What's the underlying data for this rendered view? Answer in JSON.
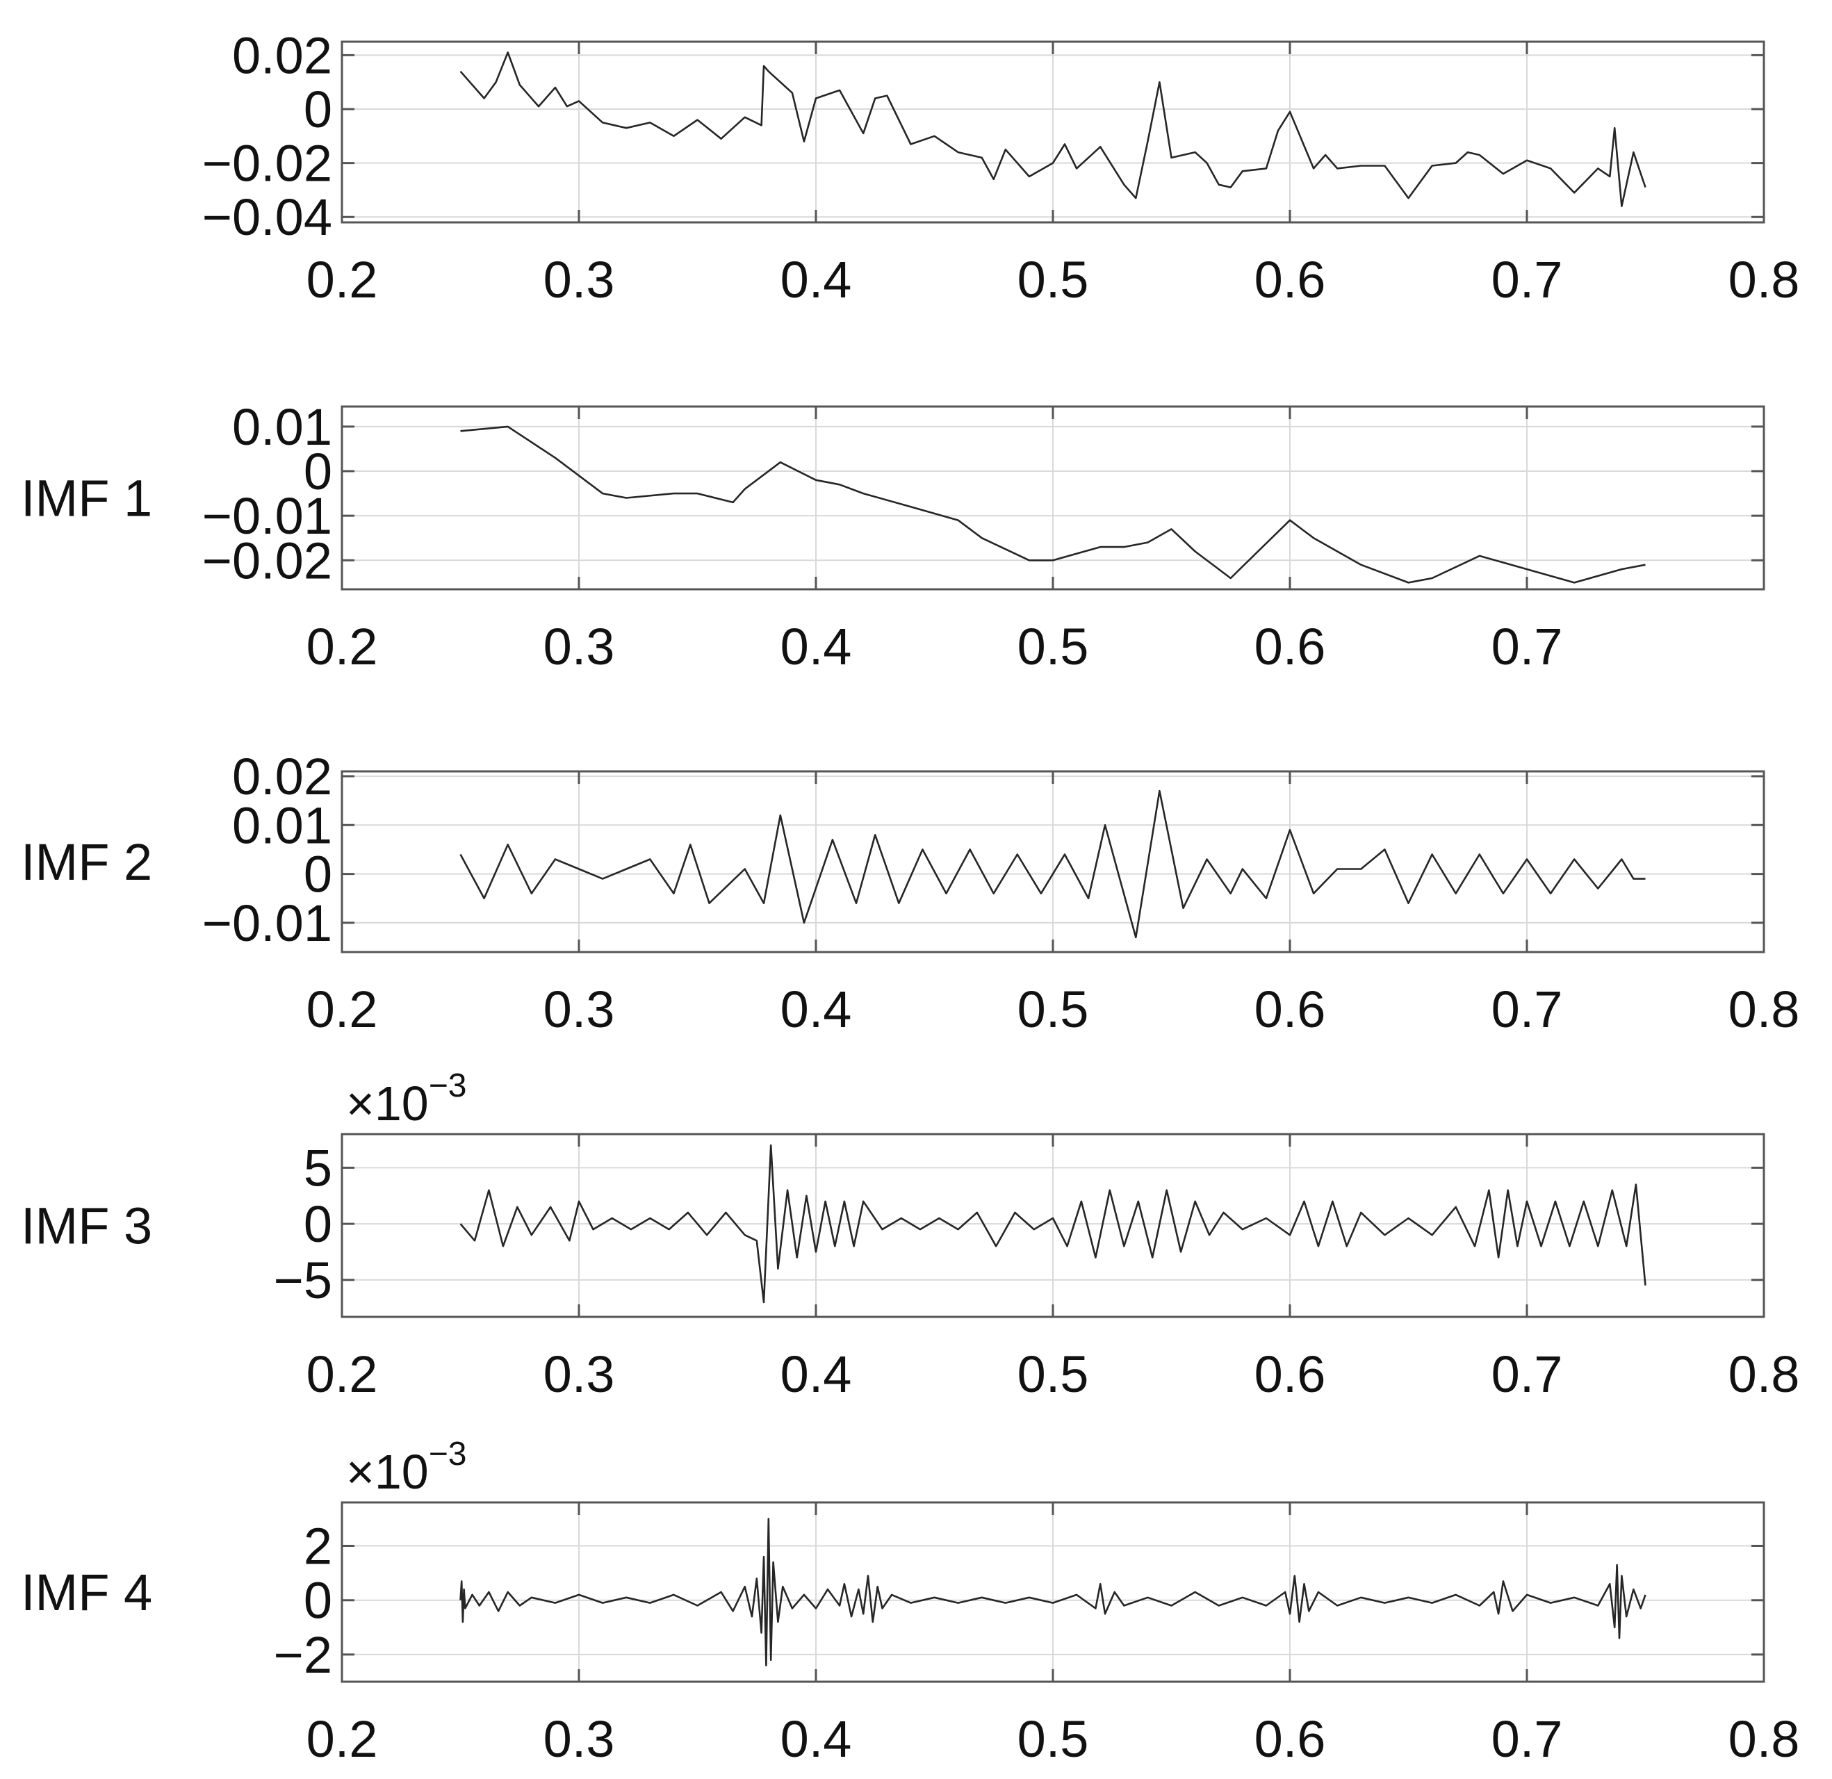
{
  "chart_data": [
    {
      "type": "line",
      "ylabel": "",
      "exponent": "",
      "xlim": [
        0.2,
        0.8
      ],
      "ylim": [
        -0.042,
        0.025
      ],
      "xticks": [
        "0.2",
        "0.3",
        "0.4",
        "0.5",
        "0.6",
        "0.7",
        "0.8"
      ],
      "yticks": [
        {
          "value": 0.02,
          "label": "0.02"
        },
        {
          "value": 0,
          "label": "0"
        },
        {
          "value": -0.02,
          "label": "−0.02"
        },
        {
          "value": -0.04,
          "label": "−0.04"
        }
      ],
      "grid": true,
      "series": [
        {
          "x": [
            0.25,
            0.26,
            0.265,
            0.27,
            0.275,
            0.283,
            0.29,
            0.295,
            0.3,
            0.31,
            0.32,
            0.33,
            0.34,
            0.35,
            0.36,
            0.37,
            0.377,
            0.378,
            0.38,
            0.39,
            0.395,
            0.4,
            0.41,
            0.42,
            0.425,
            0.43,
            0.44,
            0.45,
            0.46,
            0.47,
            0.475,
            0.48,
            0.49,
            0.5,
            0.505,
            0.51,
            0.52,
            0.53,
            0.535,
            0.54,
            0.545,
            0.55,
            0.56,
            0.565,
            0.57,
            0.575,
            0.58,
            0.59,
            0.595,
            0.6,
            0.61,
            0.615,
            0.62,
            0.63,
            0.64,
            0.65,
            0.66,
            0.67,
            0.675,
            0.68,
            0.69,
            0.7,
            0.71,
            0.72,
            0.73,
            0.735,
            0.737,
            0.74,
            0.745,
            0.75
          ],
          "y": [
            0.014,
            0.004,
            0.01,
            0.021,
            0.009,
            0.001,
            0.008,
            0.001,
            0.003,
            -0.005,
            -0.007,
            -0.005,
            -0.01,
            -0.004,
            -0.011,
            -0.003,
            -0.006,
            0.016,
            0.014,
            0.006,
            -0.012,
            0.004,
            0.007,
            -0.009,
            0.004,
            0.005,
            -0.013,
            -0.01,
            -0.016,
            -0.018,
            -0.026,
            -0.015,
            -0.025,
            -0.02,
            -0.013,
            -0.022,
            -0.014,
            -0.028,
            -0.033,
            -0.012,
            0.01,
            -0.018,
            -0.016,
            -0.02,
            -0.028,
            -0.029,
            -0.023,
            -0.022,
            -0.008,
            -0.001,
            -0.022,
            -0.017,
            -0.022,
            -0.021,
            -0.021,
            -0.033,
            -0.021,
            -0.02,
            -0.016,
            -0.017,
            -0.024,
            -0.019,
            -0.022,
            -0.031,
            -0.022,
            -0.025,
            -0.007,
            -0.036,
            -0.016,
            -0.029
          ]
        }
      ]
    },
    {
      "type": "line",
      "ylabel": "IMF 1",
      "exponent": "",
      "xlim": [
        0.2,
        0.8
      ],
      "ylim": [
        -0.0265,
        0.0145
      ],
      "xticks": [
        "0.2",
        "0.3",
        "0.4",
        "0.5",
        "0.6",
        "0.7"
      ],
      "yticks": [
        {
          "value": 0.01,
          "label": "0.01"
        },
        {
          "value": 0,
          "label": "0"
        },
        {
          "value": -0.01,
          "label": "−0.01"
        },
        {
          "value": -0.02,
          "label": "−0.02"
        }
      ],
      "grid": true,
      "series": [
        {
          "x": [
            0.25,
            0.27,
            0.29,
            0.3,
            0.31,
            0.32,
            0.34,
            0.35,
            0.365,
            0.37,
            0.385,
            0.4,
            0.41,
            0.42,
            0.44,
            0.46,
            0.47,
            0.49,
            0.5,
            0.52,
            0.53,
            0.54,
            0.55,
            0.56,
            0.575,
            0.6,
            0.61,
            0.63,
            0.65,
            0.66,
            0.68,
            0.7,
            0.72,
            0.74,
            0.75
          ],
          "y": [
            0.009,
            0.01,
            0.003,
            -0.001,
            -0.005,
            -0.006,
            -0.005,
            -0.005,
            -0.007,
            -0.004,
            0.002,
            -0.002,
            -0.003,
            -0.005,
            -0.008,
            -0.011,
            -0.015,
            -0.02,
            -0.02,
            -0.017,
            -0.017,
            -0.016,
            -0.013,
            -0.018,
            -0.024,
            -0.011,
            -0.015,
            -0.021,
            -0.025,
            -0.024,
            -0.019,
            -0.022,
            -0.025,
            -0.022,
            -0.021
          ]
        }
      ]
    },
    {
      "type": "line",
      "ylabel": "IMF 2",
      "exponent": "",
      "xlim": [
        0.2,
        0.8
      ],
      "ylim": [
        -0.016,
        0.021
      ],
      "xticks": [
        "0.2",
        "0.3",
        "0.4",
        "0.5",
        "0.6",
        "0.7",
        "0.8"
      ],
      "yticks": [
        {
          "value": 0.02,
          "label": "0.02"
        },
        {
          "value": 0.01,
          "label": "0.01"
        },
        {
          "value": 0,
          "label": "0"
        },
        {
          "value": -0.01,
          "label": "−0.01"
        }
      ],
      "grid": true,
      "series": [
        {
          "x": [
            0.25,
            0.26,
            0.27,
            0.28,
            0.29,
            0.3,
            0.31,
            0.32,
            0.33,
            0.34,
            0.347,
            0.355,
            0.37,
            0.378,
            0.385,
            0.395,
            0.407,
            0.417,
            0.425,
            0.435,
            0.445,
            0.455,
            0.465,
            0.475,
            0.485,
            0.495,
            0.505,
            0.515,
            0.522,
            0.535,
            0.545,
            0.555,
            0.565,
            0.575,
            0.58,
            0.59,
            0.6,
            0.61,
            0.62,
            0.63,
            0.64,
            0.65,
            0.66,
            0.67,
            0.68,
            0.69,
            0.7,
            0.71,
            0.72,
            0.73,
            0.74,
            0.745,
            0.75
          ],
          "y": [
            0.004,
            -0.005,
            0.006,
            -0.004,
            0.003,
            0.001,
            -0.001,
            0.001,
            0.003,
            -0.004,
            0.006,
            -0.006,
            0.001,
            -0.006,
            0.012,
            -0.01,
            0.007,
            -0.006,
            0.008,
            -0.006,
            0.005,
            -0.004,
            0.005,
            -0.004,
            0.004,
            -0.004,
            0.004,
            -0.005,
            0.01,
            -0.013,
            0.017,
            -0.007,
            0.003,
            -0.004,
            0.001,
            -0.005,
            0.009,
            -0.004,
            0.001,
            0.001,
            0.005,
            -0.006,
            0.004,
            -0.004,
            0.004,
            -0.004,
            0.003,
            -0.004,
            0.003,
            -0.003,
            0.003,
            -0.001,
            -0.001
          ]
        }
      ]
    },
    {
      "type": "line",
      "ylabel": "IMF 3",
      "exponent": "−3",
      "xlim": [
        0.2,
        0.8
      ],
      "ylim": [
        -8.3,
        8.0
      ],
      "xticks": [
        "0.2",
        "0.3",
        "0.4",
        "0.5",
        "0.6",
        "0.7",
        "0.8"
      ],
      "yticks": [
        {
          "value": 5,
          "label": "5"
        },
        {
          "value": 0,
          "label": "0"
        },
        {
          "value": -5,
          "label": "−5"
        }
      ],
      "grid": true,
      "series": [
        {
          "x": [
            0.25,
            0.256,
            0.262,
            0.268,
            0.274,
            0.28,
            0.288,
            0.296,
            0.3,
            0.306,
            0.314,
            0.322,
            0.33,
            0.338,
            0.346,
            0.354,
            0.362,
            0.37,
            0.375,
            0.378,
            0.381,
            0.384,
            0.388,
            0.392,
            0.396,
            0.4,
            0.404,
            0.408,
            0.412,
            0.416,
            0.42,
            0.428,
            0.436,
            0.444,
            0.452,
            0.46,
            0.468,
            0.476,
            0.484,
            0.492,
            0.5,
            0.506,
            0.512,
            0.518,
            0.524,
            0.53,
            0.536,
            0.542,
            0.548,
            0.554,
            0.56,
            0.566,
            0.572,
            0.58,
            0.59,
            0.6,
            0.606,
            0.612,
            0.618,
            0.624,
            0.63,
            0.64,
            0.65,
            0.66,
            0.67,
            0.678,
            0.684,
            0.688,
            0.692,
            0.696,
            0.7,
            0.706,
            0.712,
            0.718,
            0.724,
            0.73,
            0.736,
            0.742,
            0.746,
            0.75
          ],
          "y": [
            0,
            -1.5,
            3,
            -2,
            1.5,
            -1,
            1.5,
            -1.5,
            2,
            -0.5,
            0.5,
            -0.5,
            0.5,
            -0.5,
            1,
            -1,
            1,
            -1,
            -1.5,
            -7,
            7,
            -4,
            3,
            -3,
            2.5,
            -2.5,
            2,
            -2,
            2,
            -2,
            2,
            -0.5,
            0.5,
            -0.5,
            0.5,
            -0.5,
            1,
            -2,
            1,
            -0.5,
            0.5,
            -2,
            2,
            -3,
            3,
            -2,
            2,
            -3,
            3,
            -2.5,
            2,
            -1,
            1,
            -0.5,
            0.5,
            -1,
            2,
            -2,
            2,
            -2,
            1,
            -1,
            0.5,
            -1,
            1.5,
            -2,
            3,
            -3,
            3,
            -2,
            2,
            -2,
            2,
            -2,
            2,
            -2,
            3,
            -2,
            3.5,
            -5.5
          ]
        }
      ]
    },
    {
      "type": "line",
      "ylabel": "IMF 4",
      "exponent": "−3",
      "xlim": [
        0.2,
        0.8
      ],
      "ylim": [
        -3.0,
        3.6
      ],
      "xticks": [
        "0.2",
        "0.3",
        "0.4",
        "0.5",
        "0.6",
        "0.7",
        "0.8"
      ],
      "yticks": [
        {
          "value": 2,
          "label": "2"
        },
        {
          "value": 0,
          "label": "0"
        },
        {
          "value": -2,
          "label": "−2"
        }
      ],
      "grid": true,
      "series": [
        {
          "x": [
            0.25,
            0.2505,
            0.251,
            0.2515,
            0.252,
            0.255,
            0.258,
            0.262,
            0.266,
            0.27,
            0.275,
            0.28,
            0.29,
            0.3,
            0.31,
            0.32,
            0.33,
            0.34,
            0.35,
            0.36,
            0.365,
            0.37,
            0.373,
            0.375,
            0.377,
            0.378,
            0.379,
            0.38,
            0.381,
            0.382,
            0.384,
            0.386,
            0.39,
            0.395,
            0.4,
            0.405,
            0.41,
            0.412,
            0.415,
            0.418,
            0.42,
            0.422,
            0.424,
            0.426,
            0.428,
            0.432,
            0.44,
            0.45,
            0.46,
            0.47,
            0.48,
            0.49,
            0.5,
            0.51,
            0.518,
            0.52,
            0.522,
            0.526,
            0.53,
            0.54,
            0.55,
            0.56,
            0.57,
            0.58,
            0.59,
            0.598,
            0.6,
            0.602,
            0.604,
            0.606,
            0.608,
            0.612,
            0.62,
            0.63,
            0.64,
            0.65,
            0.66,
            0.67,
            0.68,
            0.686,
            0.688,
            0.69,
            0.694,
            0.7,
            0.71,
            0.72,
            0.73,
            0.735,
            0.737,
            0.738,
            0.739,
            0.74,
            0.742,
            0.745,
            0.748,
            0.75
          ],
          "y": [
            0,
            0.7,
            -0.8,
            0.4,
            -0.3,
            0.2,
            -0.2,
            0.3,
            -0.4,
            0.3,
            -0.2,
            0.1,
            -0.1,
            0.2,
            -0.1,
            0.1,
            -0.1,
            0.2,
            -0.2,
            0.3,
            -0.4,
            0.5,
            -0.6,
            0.8,
            -1.2,
            1.6,
            -2.4,
            3.0,
            -2.2,
            1.4,
            -0.8,
            0.5,
            -0.3,
            0.2,
            -0.3,
            0.4,
            -0.2,
            0.6,
            -0.6,
            0.4,
            -0.5,
            0.9,
            -0.8,
            0.5,
            -0.3,
            0.2,
            -0.1,
            0.1,
            -0.1,
            0.1,
            -0.1,
            0.1,
            -0.1,
            0.2,
            -0.3,
            0.6,
            -0.5,
            0.3,
            -0.2,
            0.1,
            -0.2,
            0.3,
            -0.2,
            0.1,
            -0.2,
            0.3,
            -0.5,
            0.9,
            -0.8,
            0.6,
            -0.4,
            0.3,
            -0.2,
            0.1,
            -0.1,
            0.1,
            -0.1,
            0.2,
            -0.2,
            0.3,
            -0.5,
            0.7,
            -0.4,
            0.2,
            -0.1,
            0.1,
            -0.2,
            0.6,
            -1.0,
            1.3,
            -1.4,
            0.9,
            -0.6,
            0.4,
            -0.3,
            0.2
          ]
        }
      ]
    }
  ]
}
